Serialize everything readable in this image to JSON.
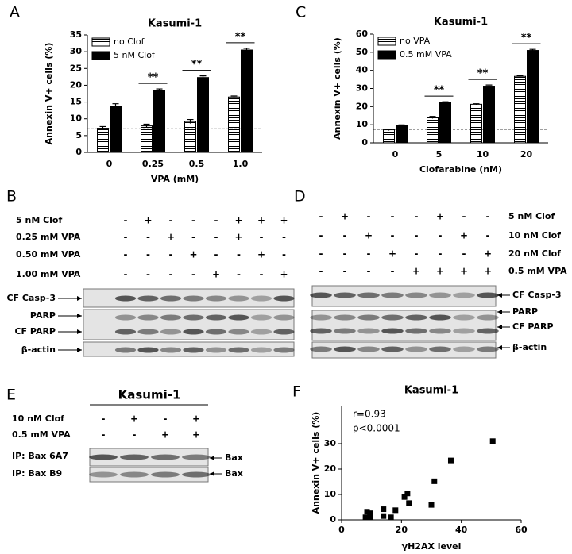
{
  "panel_labels": [
    "A",
    "B",
    "C",
    "D",
    "E",
    "F"
  ],
  "chart_data": [
    {
      "type": "bar",
      "title": "Kasumi-1",
      "x_label": "VPA (mM)",
      "y_label": "Annexin V+ cells (%)",
      "categories": [
        "0",
        "0.25",
        "0.5",
        "1.0"
      ],
      "series": [
        {
          "name": "no Clof",
          "color": "#ffffff",
          "hatch": true,
          "values": [
            7.2,
            7.9,
            9.2,
            16.5
          ],
          "errors": [
            0.5,
            0.5,
            0.6,
            0.3
          ]
        },
        {
          "name": "5 nM Clof",
          "color": "#000000",
          "hatch": false,
          "values": [
            13.8,
            18.5,
            22.3,
            30.5
          ],
          "errors": [
            0.7,
            0.4,
            0.5,
            0.5
          ]
        }
      ],
      "significance": [
        null,
        "**",
        "**",
        "**"
      ],
      "reference_line": 7,
      "ylim": [
        0,
        35
      ],
      "yticks": [
        0,
        5,
        10,
        15,
        20,
        25,
        30,
        35
      ],
      "legend": "upper left"
    },
    {
      "type": "bar",
      "title": "Kasumi-1",
      "x_label": "Clofarabine (nM)",
      "y_label": "Annexin V+ cells (%)",
      "categories": [
        "0",
        "5",
        "10",
        "20"
      ],
      "series": [
        {
          "name": "no VPA",
          "color": "#ffffff",
          "hatch": true,
          "values": [
            7.2,
            14,
            21.3,
            36.7
          ],
          "errors": [
            0.4,
            0.6,
            0.3,
            0.3
          ]
        },
        {
          "name": "0.5 mM VPA",
          "color": "#000000",
          "hatch": false,
          "values": [
            9.5,
            22.3,
            31.3,
            51
          ],
          "errors": [
            0.4,
            0.4,
            0.6,
            0.6
          ]
        }
      ],
      "significance": [
        null,
        "**",
        "**",
        "**"
      ],
      "reference_line": 7.5,
      "ylim": [
        0,
        60
      ],
      "yticks": [
        0,
        10,
        20,
        30,
        40,
        50,
        60
      ],
      "legend": "upper left"
    },
    {
      "type": "scatter",
      "title": "Kasumi-1",
      "x_label": "γH2AX level",
      "y_label": "Annexin V+ cells (%)",
      "annotations": [
        "r=0.93",
        "p<0.0001"
      ],
      "color": "#000000",
      "x": [
        8,
        8.5,
        9.5,
        9.5,
        14,
        14,
        16.5,
        18,
        21,
        22,
        22.5,
        30,
        31,
        36.5,
        50.5
      ],
      "y": [
        1,
        3.2,
        2.6,
        1,
        4.2,
        1.5,
        1,
        3.8,
        9,
        10.4,
        6.6,
        5.9,
        15.2,
        23.4,
        31
      ],
      "xlim": [
        0,
        60
      ],
      "xticks": [
        0,
        20,
        40,
        60
      ],
      "ylim": [
        0,
        45
      ],
      "yticks": [
        0,
        10,
        20,
        30
      ]
    }
  ],
  "blots": [
    {
      "rows": [
        {
          "label": "5 nM Clof",
          "signs": [
            "-",
            "+",
            "-",
            "-",
            "-",
            "+",
            "+",
            "+"
          ]
        },
        {
          "label": "0.25 mM VPA",
          "signs": [
            "-",
            "-",
            "+",
            "-",
            "-",
            "+",
            "-",
            "-"
          ]
        },
        {
          "label": "0.50 mM VPA",
          "signs": [
            "-",
            "-",
            "-",
            "+",
            "-",
            "-",
            "+",
            "-"
          ]
        },
        {
          "label": "1.00 mM VPA",
          "signs": [
            "-",
            "-",
            "-",
            "-",
            "+",
            "-",
            "-",
            "+"
          ]
        }
      ],
      "bands": [
        "CF Casp-3",
        "PARP",
        "CF PARP",
        "β-actin"
      ]
    },
    {
      "rows": [
        {
          "label": "5 nM Clof",
          "signs": [
            "-",
            "+",
            "-",
            "-",
            "-",
            "+",
            "-",
            "-"
          ]
        },
        {
          "label": "10 nM Clof",
          "signs": [
            "-",
            "-",
            "+",
            "-",
            "-",
            "-",
            "+",
            "-"
          ]
        },
        {
          "label": "20 nM Clof",
          "signs": [
            "-",
            "-",
            "-",
            "+",
            "-",
            "-",
            "-",
            "+"
          ]
        },
        {
          "label": "0.5 mM VPA",
          "signs": [
            "-",
            "-",
            "-",
            "-",
            "+",
            "+",
            "+",
            "+"
          ]
        }
      ],
      "bands": [
        "CF Casp-3",
        "PARP",
        "CF PARP",
        "β-actin"
      ]
    },
    {
      "title": "Kasumi-1",
      "rows": [
        {
          "label": "10 nM Clof",
          "signs": [
            "-",
            "+",
            "-",
            "+"
          ]
        },
        {
          "label": "0.5 mM VPA",
          "signs": [
            "-",
            "-",
            "+",
            "+"
          ]
        }
      ],
      "lanes": [
        "IP: Bax 6A7",
        "IP: Bax B9"
      ],
      "bands": [
        "Bax",
        "Bax"
      ]
    }
  ]
}
